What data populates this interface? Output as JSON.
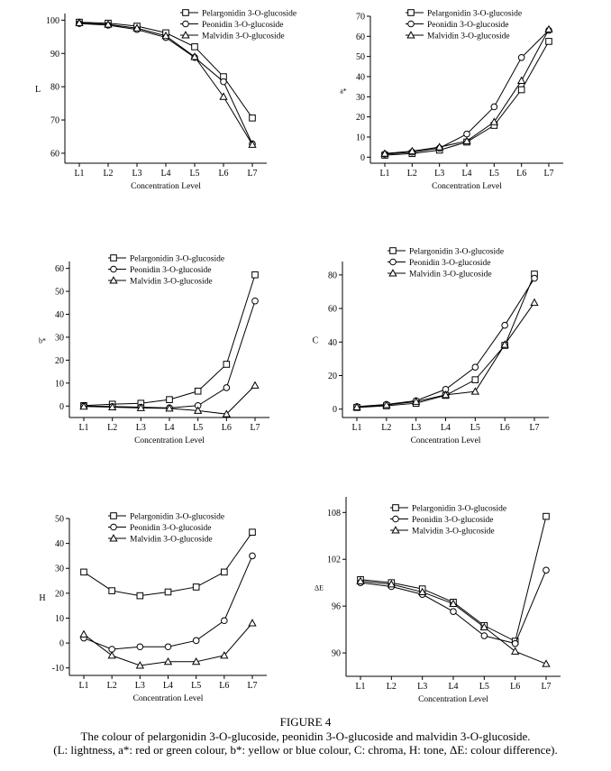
{
  "caption": {
    "figure_label": "FIGURE 4",
    "line1": "The colour of pelargonidin 3-O-glucoside, peonidin 3-O-glucoside and malvidin 3-O-glucoside.",
    "line2": "(L: lightness, a*: red or green colour, b*: yellow or blue colour, C: chroma, H: tone, ΔE: colour difference)."
  },
  "chart_data": [
    {
      "type": "line",
      "categories": [
        "L1",
        "L2",
        "L3",
        "L4",
        "L5",
        "L6",
        "L7"
      ],
      "xlabel": "Concentration Level",
      "ylabel": "L",
      "ylim": [
        57,
        102
      ],
      "yticks": [
        60,
        70,
        80,
        90,
        100
      ],
      "legend_position": "top-right",
      "series": [
        {
          "name": "Pelargonidin 3-O-glucoside",
          "marker": "square",
          "values": [
            99.4,
            99.1,
            98.2,
            96.2,
            92.0,
            83.0,
            70.6
          ]
        },
        {
          "name": "Peonidin 3-O-glucoside",
          "marker": "circle",
          "values": [
            99.0,
            98.5,
            97.2,
            94.8,
            88.8,
            81.5,
            62.8
          ]
        },
        {
          "name": "Malvidin 3-O-glucoside",
          "marker": "triangle",
          "values": [
            99.2,
            98.7,
            97.6,
            95.3,
            89.0,
            77.0,
            62.6
          ]
        }
      ]
    },
    {
      "type": "line",
      "categories": [
        "L1",
        "L2",
        "L3",
        "L4",
        "L5",
        "L6",
        "L7"
      ],
      "xlabel": "Concentration Level",
      "ylabel": "a*",
      "ylim": [
        -3,
        70
      ],
      "yticks": [
        0,
        10,
        20,
        30,
        40,
        50,
        60,
        70
      ],
      "legend_position": "top-right",
      "series": [
        {
          "name": "Pelargonidin 3-O-glucoside",
          "marker": "square",
          "values": [
            1.0,
            1.8,
            3.5,
            7.5,
            15.8,
            33.5,
            57.5
          ]
        },
        {
          "name": "Peonidin 3-O-glucoside",
          "marker": "circle",
          "values": [
            1.5,
            2.5,
            4.5,
            11.5,
            25.0,
            49.5,
            63.0
          ]
        },
        {
          "name": "Malvidin 3-O-glucoside",
          "marker": "triangle",
          "values": [
            1.8,
            3.0,
            5.0,
            8.0,
            17.5,
            38.0,
            63.5
          ]
        }
      ]
    },
    {
      "type": "line",
      "categories": [
        "L1",
        "L2",
        "L3",
        "L4",
        "L5",
        "L6",
        "L7"
      ],
      "xlabel": "Concentration Level",
      "ylabel": "b*",
      "ylim": [
        -5,
        63
      ],
      "yticks": [
        0,
        10,
        20,
        30,
        40,
        50,
        60
      ],
      "legend_position": "top-right",
      "series": [
        {
          "name": "Pelargonidin 3-O-glucoside",
          "marker": "square",
          "values": [
            0.2,
            0.8,
            1.2,
            2.8,
            6.5,
            18.2,
            57.2
          ]
        },
        {
          "name": "Peonidin 3-O-glucoside",
          "marker": "circle",
          "values": [
            0.0,
            -0.2,
            -0.5,
            -0.8,
            0.2,
            8.0,
            45.8
          ]
        },
        {
          "name": "Malvidin 3-O-glucoside",
          "marker": "triangle",
          "values": [
            -0.2,
            -0.5,
            -0.8,
            -1.0,
            -2.0,
            -3.5,
            9.0
          ]
        }
      ]
    },
    {
      "type": "line",
      "categories": [
        "L1",
        "L2",
        "L3",
        "L4",
        "L5",
        "L6",
        "L7"
      ],
      "xlabel": "Concentration Level",
      "ylabel": "C",
      "ylim": [
        -5,
        88
      ],
      "yticks": [
        0,
        20,
        40,
        60,
        80
      ],
      "legend_position": "top-right",
      "series": [
        {
          "name": "Pelargonidin 3-O-glucoside",
          "marker": "square",
          "values": [
            1.0,
            2.0,
            3.5,
            8.2,
            17.5,
            38.0,
            80.5
          ]
        },
        {
          "name": "Peonidin 3-O-glucoside",
          "marker": "circle",
          "values": [
            1.5,
            2.8,
            5.0,
            11.8,
            25.0,
            50.0,
            78.0
          ]
        },
        {
          "name": "Malvidin 3-O-glucoside",
          "marker": "triangle",
          "values": [
            1.2,
            2.5,
            4.5,
            8.5,
            10.5,
            38.5,
            63.5
          ]
        }
      ]
    },
    {
      "type": "line",
      "categories": [
        "L1",
        "L2",
        "L3",
        "L4",
        "L5",
        "L6",
        "L7"
      ],
      "xlabel": "Concentration Level",
      "ylabel": "H",
      "ylim": [
        -13,
        50
      ],
      "yticks": [
        -10,
        0,
        10,
        20,
        30,
        40,
        50
      ],
      "legend_position": "top-right",
      "series": [
        {
          "name": "Pelargonidin 3-O-glucoside",
          "marker": "square",
          "values": [
            28.5,
            21.0,
            19.0,
            20.5,
            22.5,
            28.5,
            44.5
          ]
        },
        {
          "name": "Peonidin 3-O-glucoside",
          "marker": "circle",
          "values": [
            2.0,
            -2.5,
            -1.5,
            -1.5,
            1.0,
            9.0,
            35.0
          ]
        },
        {
          "name": "Malvidin 3-O-glucoside",
          "marker": "triangle",
          "values": [
            3.5,
            -5.0,
            -9.0,
            -7.5,
            -7.5,
            -5.0,
            8.0
          ]
        }
      ]
    },
    {
      "type": "line",
      "categories": [
        "L1",
        "L2",
        "L3",
        "L4",
        "L5",
        "L6",
        "L7"
      ],
      "xlabel": "Concentration Level",
      "ylabel": "ΔE",
      "ylim": [
        87,
        110
      ],
      "yticks": [
        90,
        96,
        102,
        108
      ],
      "legend_position": "top-right",
      "series": [
        {
          "name": "Pelargonidin 3-O-glucoside",
          "marker": "square",
          "values": [
            99.4,
            99.0,
            98.2,
            96.5,
            93.5,
            91.5,
            107.5
          ]
        },
        {
          "name": "Peonidin 3-O-glucoside",
          "marker": "circle",
          "values": [
            99.0,
            98.5,
            97.5,
            95.3,
            92.2,
            91.2,
            100.6
          ]
        },
        {
          "name": "Malvidin 3-O-glucoside",
          "marker": "triangle",
          "values": [
            99.2,
            98.8,
            97.8,
            96.3,
            93.3,
            90.2,
            88.6
          ]
        }
      ]
    }
  ]
}
